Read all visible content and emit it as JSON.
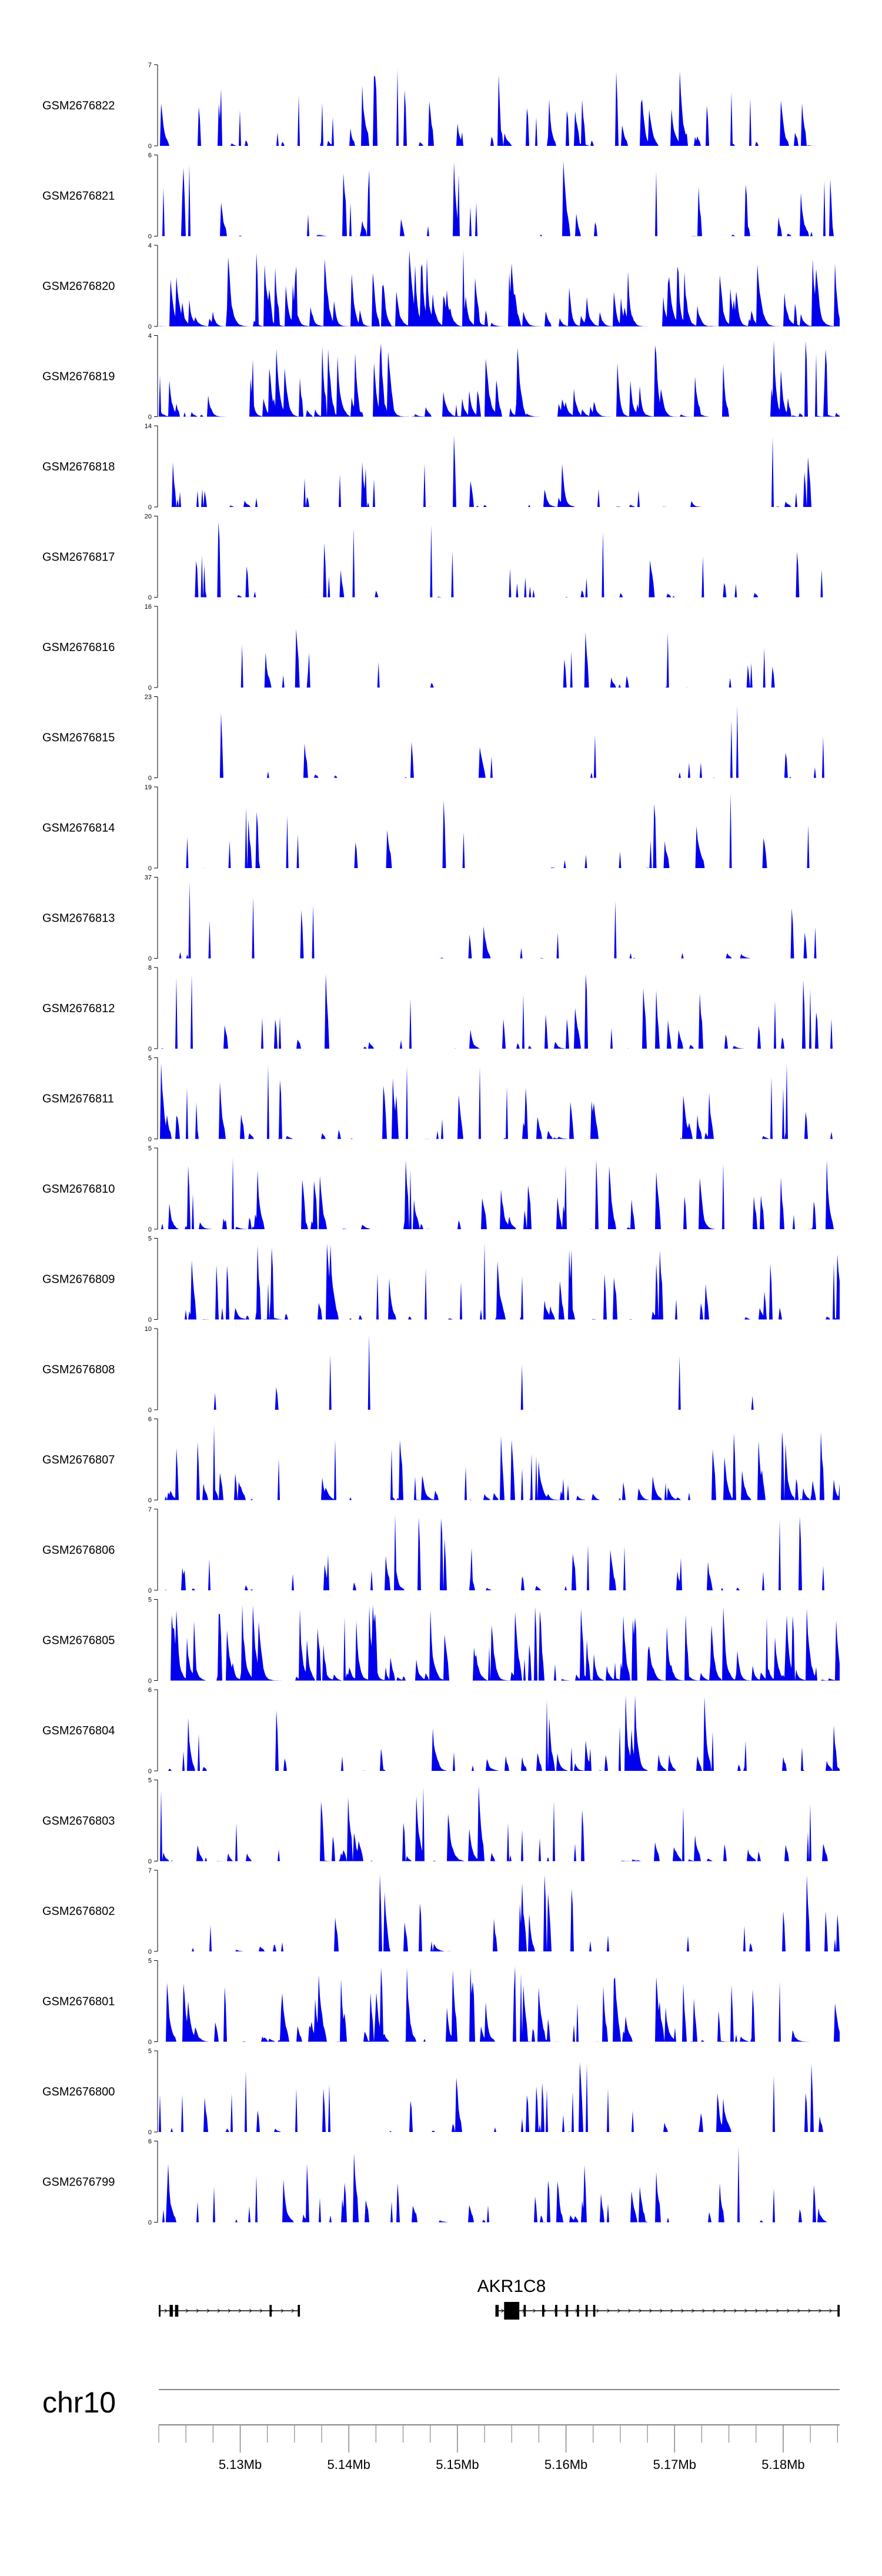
{
  "chart_data": {
    "type": "area",
    "title": "",
    "chromosome": "chr10",
    "x_range_mb": [
      5.1225,
      5.1852
    ],
    "x_ticks": [
      "5.13Mb",
      "5.14Mb",
      "5.15Mb",
      "5.16Mb",
      "5.17Mb",
      "5.18Mb"
    ],
    "x_tick_values_mb": [
      5.13,
      5.14,
      5.15,
      5.16,
      5.17,
      5.18
    ],
    "gene": {
      "name": "AKR1C8",
      "start_mb": 5.1535,
      "end_mb": 5.1852
    },
    "series": [
      {
        "name": "GSM2676822",
        "ymax": 7,
        "start_mb": 5.1225,
        "end_mb": 5.1852,
        "density": 0.55,
        "seed": 11
      },
      {
        "name": "GSM2676821",
        "ymax": 6,
        "start_mb": 5.1225,
        "end_mb": 5.1852,
        "density": 0.45,
        "seed": 23
      },
      {
        "name": "GSM2676820",
        "ymax": 4,
        "start_mb": 5.1225,
        "end_mb": 5.1852,
        "density": 0.8,
        "seed": 37
      },
      {
        "name": "GSM2676819",
        "ymax": 4,
        "start_mb": 5.1225,
        "end_mb": 5.1852,
        "density": 0.75,
        "seed": 41
      },
      {
        "name": "GSM2676818",
        "ymax": 14,
        "start_mb": 5.1225,
        "end_mb": 5.1852,
        "density": 0.45,
        "seed": 53
      },
      {
        "name": "GSM2676817",
        "ymax": 20,
        "start_mb": 5.1255,
        "end_mb": 5.1845,
        "density": 0.35,
        "seed": 67
      },
      {
        "name": "GSM2676816",
        "ymax": 16,
        "start_mb": 5.124,
        "end_mb": 5.1838,
        "density": 0.3,
        "seed": 71
      },
      {
        "name": "GSM2676815",
        "ymax": 23,
        "start_mb": 5.1265,
        "end_mb": 5.1845,
        "density": 0.3,
        "seed": 83
      },
      {
        "name": "GSM2676814",
        "ymax": 19,
        "start_mb": 5.1235,
        "end_mb": 5.1835,
        "density": 0.35,
        "seed": 97
      },
      {
        "name": "GSM2676813",
        "ymax": 37,
        "start_mb": 5.1235,
        "end_mb": 5.185,
        "density": 0.35,
        "seed": 101
      },
      {
        "name": "GSM2676812",
        "ymax": 8,
        "start_mb": 5.1225,
        "end_mb": 5.1852,
        "density": 0.45,
        "seed": 113
      },
      {
        "name": "GSM2676811",
        "ymax": 5,
        "start_mb": 5.1225,
        "end_mb": 5.1852,
        "density": 0.55,
        "seed": 127
      },
      {
        "name": "GSM2676810",
        "ymax": 5,
        "start_mb": 5.1225,
        "end_mb": 5.1852,
        "density": 0.6,
        "seed": 131
      },
      {
        "name": "GSM2676809",
        "ymax": 5,
        "start_mb": 5.1225,
        "end_mb": 5.1852,
        "density": 0.55,
        "seed": 149
      },
      {
        "name": "GSM2676808",
        "ymax": 10,
        "start_mb": 5.1253,
        "end_mb": 5.1845,
        "density": 0.2,
        "seed": 151
      },
      {
        "name": "GSM2676807",
        "ymax": 6,
        "start_mb": 5.1225,
        "end_mb": 5.1852,
        "density": 0.6,
        "seed": 163
      },
      {
        "name": "GSM2676806",
        "ymax": 7,
        "start_mb": 5.1225,
        "end_mb": 5.1852,
        "density": 0.4,
        "seed": 173
      },
      {
        "name": "GSM2676805",
        "ymax": 5,
        "start_mb": 5.1225,
        "end_mb": 5.1852,
        "density": 0.75,
        "seed": 181
      },
      {
        "name": "GSM2676804",
        "ymax": 6,
        "start_mb": 5.1225,
        "end_mb": 5.1852,
        "density": 0.55,
        "seed": 191
      },
      {
        "name": "GSM2676803",
        "ymax": 5,
        "start_mb": 5.1225,
        "end_mb": 5.1852,
        "density": 0.55,
        "seed": 199
      },
      {
        "name": "GSM2676802",
        "ymax": 7,
        "start_mb": 5.1225,
        "end_mb": 5.1852,
        "density": 0.45,
        "seed": 211
      },
      {
        "name": "GSM2676801",
        "ymax": 5,
        "start_mb": 5.1225,
        "end_mb": 5.1852,
        "density": 0.65,
        "seed": 223
      },
      {
        "name": "GSM2676800",
        "ymax": 5,
        "start_mb": 5.1225,
        "end_mb": 5.1852,
        "density": 0.45,
        "seed": 227
      },
      {
        "name": "GSM2676799",
        "ymax": 6,
        "start_mb": 5.1225,
        "end_mb": 5.1852,
        "density": 0.55,
        "seed": 239
      }
    ],
    "fill_color": "#0000ee",
    "axis_color": "#000000",
    "track_line_color": "#888888"
  }
}
